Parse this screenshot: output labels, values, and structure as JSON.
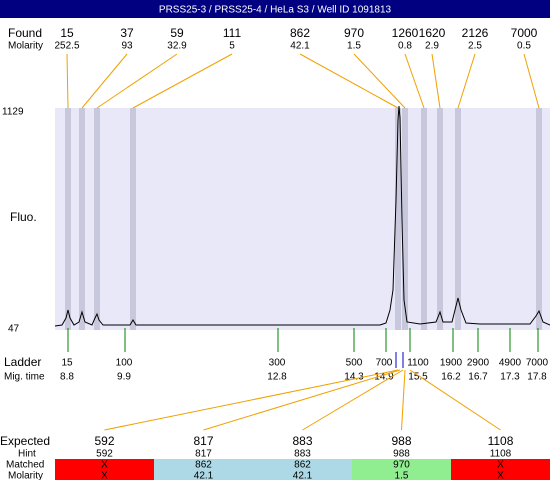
{
  "title": "PRSS25-3 / PRSS25-4 / HeLa S3 / Well ID 1091813",
  "found": {
    "label": "Found",
    "molarity_label": "Molarity",
    "peaks": [
      {
        "size": "15",
        "molarity": "252.5"
      },
      {
        "size": "37",
        "molarity": "93"
      },
      {
        "size": "59",
        "molarity": "32.9"
      },
      {
        "size": "111",
        "molarity": "5"
      },
      {
        "size": "862",
        "molarity": "42.1"
      },
      {
        "size": "970",
        "molarity": "1.5"
      },
      {
        "size": "1260",
        "molarity": "0.8"
      },
      {
        "size": "1620",
        "molarity": "2.9"
      },
      {
        "size": "2126",
        "molarity": "2.5"
      },
      {
        "size": "7000",
        "molarity": "0.5"
      }
    ]
  },
  "y_axis": {
    "label": "Fluo.",
    "max": "1129",
    "min": "47"
  },
  "ladder": {
    "label": "Ladder",
    "time_label": "Mig. time",
    "sizes": [
      "15",
      "100",
      "300",
      "500",
      "700",
      "1100",
      "1900",
      "2900",
      "4900",
      "7000"
    ],
    "times": [
      "8.8",
      "9.9",
      "12.8",
      "14.3",
      "14.9",
      "15.5",
      "16.2",
      "16.7",
      "17.3",
      "17.8"
    ]
  },
  "expected": {
    "label": "Expected",
    "hint_label": "Hint",
    "matched_label": "Matched",
    "molarity_label": "Molarity",
    "columns": [
      {
        "expected": "592",
        "hint": "592",
        "matched": "X",
        "molarity": "X",
        "color": "#ff0000"
      },
      {
        "expected": "817",
        "hint": "817",
        "matched": "862",
        "molarity": "42.1",
        "color": "#add8e6"
      },
      {
        "expected": "883",
        "hint": "883",
        "matched": "862",
        "molarity": "42.1",
        "color": "#add8e6"
      },
      {
        "expected": "988",
        "hint": "988",
        "matched": "970",
        "molarity": "1.5",
        "color": "#90ee90"
      },
      {
        "expected": "1108",
        "hint": "1108",
        "matched": "X",
        "molarity": "X",
        "color": "#ff0000"
      }
    ]
  }
}
